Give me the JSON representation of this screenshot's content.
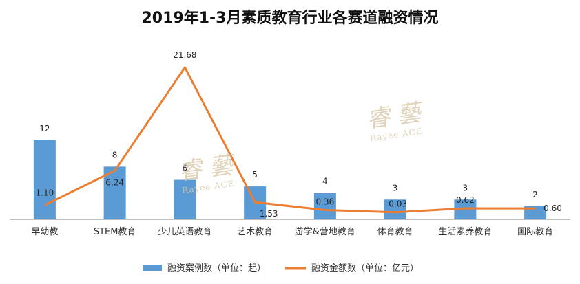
{
  "chart_data": {
    "type": "bar+line",
    "title": "2019年1-3月素质教育行业各赛道融资情况",
    "categories": [
      "早幼教",
      "STEM教育",
      "少儿英语教育",
      "艺术教育",
      "游学&营地教育",
      "体育教育",
      "生活素养教育",
      "国际教育"
    ],
    "series": [
      {
        "name": "融资案例数（单位：起）",
        "type": "bar",
        "color": "#5B9BD5",
        "values": [
          12,
          8,
          6,
          5,
          4,
          3,
          3,
          2
        ],
        "labels": [
          "12",
          "8",
          "6",
          "5",
          "4",
          "3",
          "3",
          "2"
        ]
      },
      {
        "name": "融资金额数（单位：亿元）",
        "type": "line",
        "color": "#ED7D31",
        "values": [
          1.1,
          6.24,
          21.68,
          1.53,
          0.36,
          0.03,
          0.62,
          0.6
        ],
        "labels": [
          "1.10",
          "6.24",
          "21.68",
          "1.53",
          "0.36",
          "0.03",
          "0.62",
          "0.60"
        ]
      }
    ],
    "legend_position": "bottom",
    "grid": false
  },
  "watermark": {
    "brand": "Rayee ACE",
    "color": "#D8C8A8"
  }
}
